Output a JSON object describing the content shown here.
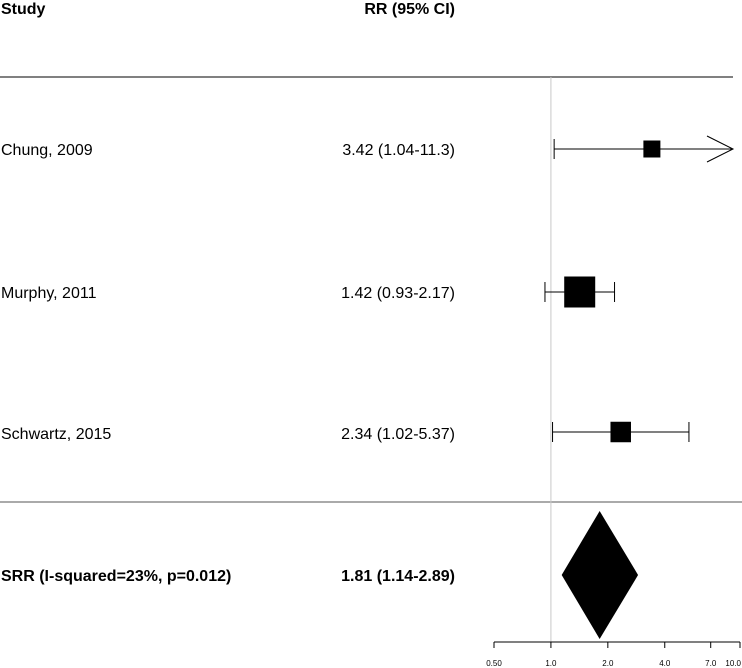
{
  "header": {
    "study_label": "Study",
    "effect_label": "RR (95% CI)"
  },
  "chart_data": {
    "type": "forest",
    "x_scale": "log",
    "xlim": [
      0.5,
      10.0
    ],
    "reference_line": 1.0,
    "x_ticks": [
      "0.50",
      "1.0",
      "2.0",
      "4.0",
      "7.0",
      "10.0"
    ],
    "studies": [
      {
        "name": "Chung, 2009",
        "ci_text": "3.42 (1.04-11.3)",
        "rr": 3.42,
        "lower": 1.04,
        "upper": 11.3,
        "weight": 0.2
      },
      {
        "name": "Murphy, 2011",
        "ci_text": "1.42 (0.93-2.17)",
        "rr": 1.42,
        "lower": 0.93,
        "upper": 2.17,
        "weight": 0.6
      },
      {
        "name": "Schwartz, 2015",
        "ci_text": "2.34 (1.02-5.37)",
        "rr": 2.34,
        "lower": 1.02,
        "upper": 5.37,
        "weight": 0.3
      }
    ],
    "summary": {
      "name": "SRR (I-squared=23%, p=0.012)",
      "ci_text": "1.81 (1.14-2.89)",
      "rr": 1.81,
      "lower": 1.14,
      "upper": 2.89
    }
  }
}
